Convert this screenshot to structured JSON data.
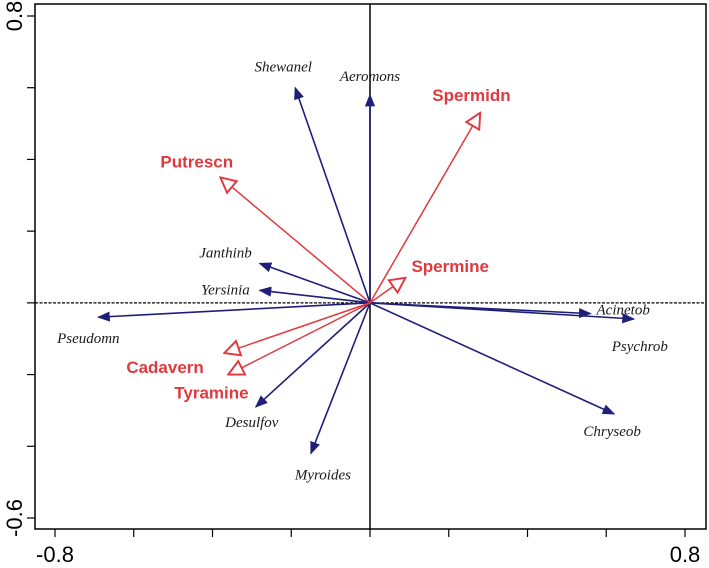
{
  "chart_data": {
    "type": "biplot",
    "xlim": [
      -0.8,
      0.8
    ],
    "ylim": [
      -0.6,
      0.8
    ],
    "x_tick_labels": [
      {
        "value": -0.8,
        "label": "-0.8"
      },
      {
        "value": 0.8,
        "label": "0.8"
      }
    ],
    "y_tick_labels": [
      {
        "value": 0.8,
        "label": "0.8"
      },
      {
        "value": -0.6,
        "label": "-0.6"
      }
    ],
    "species": [
      {
        "label": "Shewanel",
        "x": -0.19,
        "y": 0.6
      },
      {
        "label": "Aeromons",
        "x": 0.0,
        "y": 0.58
      },
      {
        "label": "Janthinb",
        "x": -0.28,
        "y": 0.11
      },
      {
        "label": "Yersinia",
        "x": -0.28,
        "y": 0.035
      },
      {
        "label": "Pseudomn",
        "x": -0.69,
        "y": -0.04
      },
      {
        "label": "Acinetob",
        "x": 0.56,
        "y": -0.03
      },
      {
        "label": "Psychrob",
        "x": 0.67,
        "y": -0.045
      },
      {
        "label": "Chryseob",
        "x": 0.62,
        "y": -0.31
      },
      {
        "label": "Desulfov",
        "x": -0.29,
        "y": -0.29
      },
      {
        "label": "Myroides",
        "x": -0.15,
        "y": -0.42
      }
    ],
    "environment": [
      {
        "label": "Spermidn",
        "x": 0.28,
        "y": 0.53
      },
      {
        "label": "Putrescn",
        "x": -0.38,
        "y": 0.35
      },
      {
        "label": "Spermine",
        "x": 0.09,
        "y": 0.07
      },
      {
        "label": "Cadavern",
        "x": -0.37,
        "y": -0.14
      },
      {
        "label": "Tyramine",
        "x": -0.36,
        "y": -0.2
      }
    ],
    "colors": {
      "species": "#1f1f7a",
      "environment": "#e0393e"
    }
  }
}
